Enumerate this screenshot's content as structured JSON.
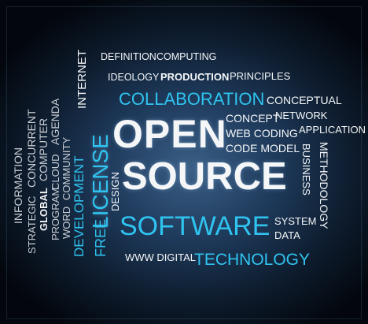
{
  "words": {
    "open": "OPEN",
    "source": "SOURCE",
    "software": "SOFTWARE",
    "collaboration": "COLLABORATION",
    "license": "LICENSE",
    "free": "FREE",
    "development": "DEVELOPMENT",
    "internet": "INTERNET",
    "design": "DESIGN",
    "definition": "DEFINITION",
    "computing": "COMPUTING",
    "ideology": "IDEOLOGY",
    "production": "PRODUCTION",
    "principles": "PRINCIPLES",
    "conceptual": "CONCEPTUAL",
    "concept": "CONCEPT",
    "network": "NETWORK",
    "web_coding": "WEB CODING",
    "application": "APPLICATION",
    "code_model": "CODE MODEL",
    "business": "BUSINESS",
    "methodology": "METHODOLOGY",
    "system": "SYSTEM",
    "data": "DATA",
    "www_digital": "WWW DIGITAL",
    "technology": "TECHNOLOGY",
    "information": "INFORMATION",
    "strategic": "STRATEGIC",
    "concurrent": "CONCURRENT",
    "global": "GLOBAL",
    "computer": "COMPUTER",
    "program": "PROGRAM",
    "cloud": "CLOUD",
    "agenda": "AGENDA",
    "word": "WORD",
    "community": "COMMUNITY"
  },
  "colors": {
    "white": "#f4f6f8",
    "grey": "#c9ced4",
    "blue": "#2fc3ef"
  }
}
